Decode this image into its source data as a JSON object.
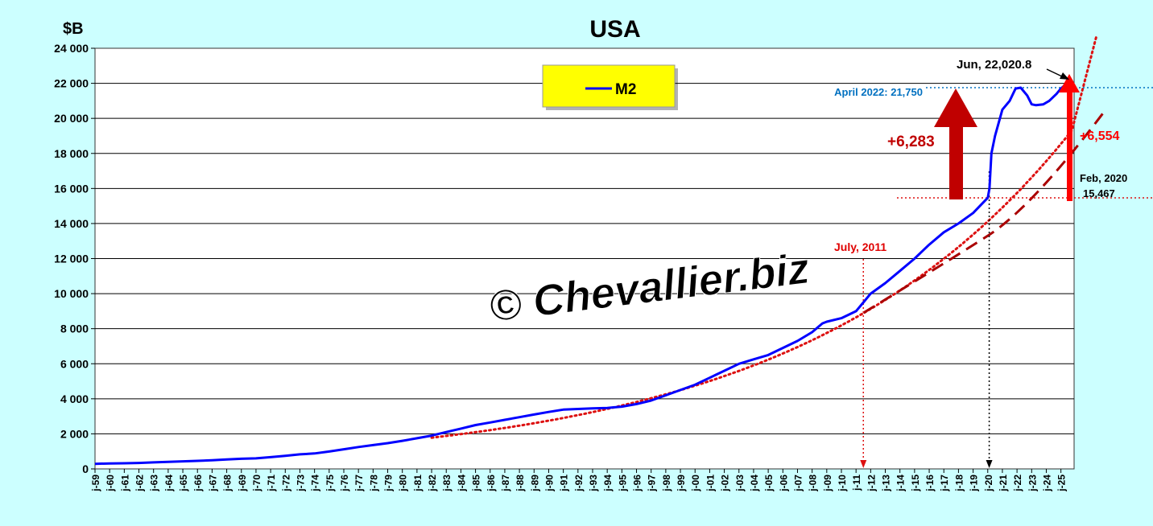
{
  "chart_data": {
    "type": "line",
    "title": "USA",
    "ylabel": "$B",
    "ylim": [
      0,
      24000
    ],
    "yticks": [
      0,
      2000,
      4000,
      6000,
      8000,
      10000,
      12000,
      14000,
      16000,
      18000,
      20000,
      22000,
      24000
    ],
    "ytick_labels": [
      "0",
      "2 000",
      "4 000",
      "6 000",
      "8 000",
      "10 000",
      "12 000",
      "14 000",
      "16 000",
      "18 000",
      "20 000",
      "22 000",
      "24 000"
    ],
    "xlim": [
      1959.0,
      2025.9
    ],
    "xtick_labels": [
      "j-59",
      "j-60",
      "j-61",
      "j-62",
      "j-63",
      "j-64",
      "j-65",
      "j-66",
      "j-67",
      "j-68",
      "j-69",
      "j-70",
      "j-71",
      "j-72",
      "j-73",
      "j-74",
      "j-75",
      "j-76",
      "j-77",
      "j-78",
      "j-79",
      "j-80",
      "j-81",
      "j-82",
      "j-83",
      "j-84",
      "j-85",
      "j-86",
      "j-87",
      "j-88",
      "j-89",
      "j-90",
      "j-91",
      "j-92",
      "j-93",
      "j-94",
      "j-95",
      "j-96",
      "j-97",
      "j-98",
      "j-99",
      "j-00",
      "j-01",
      "j-02",
      "j-03",
      "j-04",
      "j-05",
      "j-06",
      "j-07",
      "j-08",
      "j-09",
      "j-10",
      "j-11",
      "j-12",
      "j-13",
      "j-14",
      "j-15",
      "j-16",
      "j-17",
      "j-18",
      "j-19",
      "j-20",
      "j-21",
      "j-22",
      "j-23",
      "j-24",
      "j-25"
    ],
    "grid": true,
    "legend": {
      "position": "top-center",
      "entries": [
        "M2"
      ]
    },
    "colors": {
      "m2": "#0000ff",
      "trend": "#dd1111",
      "arrow": "#cc0000",
      "legend_box": "#ffff00",
      "background": "#ccffff",
      "annotation_blue": "#0070c0"
    },
    "series": [
      {
        "name": "M2",
        "x": [
          1959.0,
          1960.0,
          1961.0,
          1962.0,
          1963.0,
          1964.0,
          1965.0,
          1966.0,
          1967.0,
          1968.0,
          1969.0,
          1970.0,
          1971.0,
          1972.0,
          1973.0,
          1974.0,
          1975.0,
          1976.0,
          1977.0,
          1978.0,
          1979.0,
          1980.0,
          1981.0,
          1982.0,
          1983.0,
          1984.0,
          1985.0,
          1986.0,
          1987.0,
          1988.0,
          1989.0,
          1990.0,
          1991.0,
          1992.0,
          1993.0,
          1994.0,
          1995.0,
          1996.0,
          1997.0,
          1998.0,
          1999.0,
          2000.0,
          2001.0,
          2002.0,
          2003.0,
          2004.0,
          2005.0,
          2006.0,
          2007.0,
          2008.0,
          2008.7,
          2009.0,
          2010.0,
          2011.0,
          2011.5,
          2012.0,
          2013.0,
          2014.0,
          2015.0,
          2016.0,
          2017.0,
          2018.0,
          2019.0,
          2020.0,
          2020.12,
          2020.25,
          2020.5,
          2021.0,
          2021.5,
          2021.9,
          2022.25,
          2022.7,
          2023.0,
          2023.3,
          2023.8,
          2024.2,
          2024.7,
          2025.0,
          2025.45
        ],
        "values": [
          290,
          310,
          320,
          340,
          370,
          400,
          430,
          460,
          490,
          540,
          580,
          600,
          670,
          750,
          830,
          880,
          990,
          1120,
          1250,
          1360,
          1470,
          1600,
          1750,
          1900,
          2100,
          2300,
          2500,
          2650,
          2800,
          2950,
          3100,
          3250,
          3380,
          3420,
          3450,
          3480,
          3550,
          3700,
          3900,
          4200,
          4500,
          4800,
          5200,
          5600,
          6000,
          6250,
          6500,
          6900,
          7300,
          7800,
          8300,
          8400,
          8600,
          9000,
          9500,
          10000,
          10600,
          11300,
          12000,
          12800,
          13500,
          14000,
          14600,
          15467,
          16000,
          18000,
          19000,
          20500,
          21000,
          21700,
          21750,
          21300,
          20800,
          20750,
          20800,
          21000,
          21400,
          21700,
          22020.8
        ]
      }
    ],
    "annotations": {
      "peak": "April 2022: 21,750",
      "last": "Jun, 22,020.8",
      "big_arrow": "+6,283",
      "red_arrow": "+6,554",
      "feb_label": "Feb, 2020",
      "feb_value": "15,467",
      "july_label": "July, 2011",
      "watermark": "© Chevallier.biz"
    }
  }
}
